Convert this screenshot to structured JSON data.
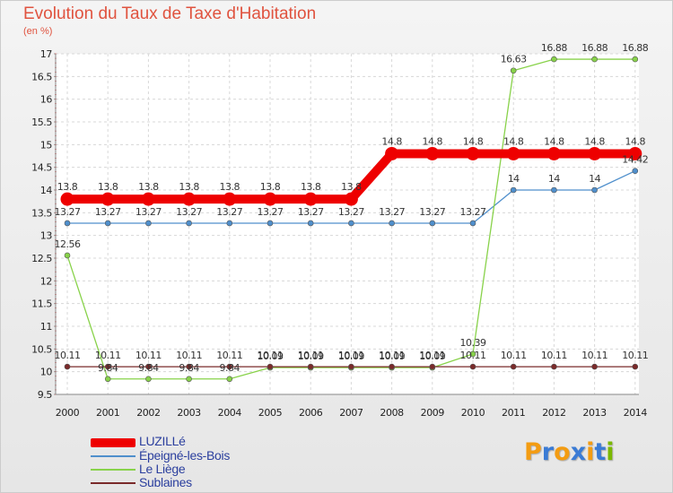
{
  "chart_data": {
    "type": "line",
    "title": "Evolution du Taux de Taxe d'Habitation",
    "ylabel": "(en %)",
    "xlabel": "",
    "ylim": [
      9.5,
      17
    ],
    "y_ticks": [
      "9.5",
      "10",
      "10.5",
      "11",
      "11.5",
      "12",
      "12.5",
      "13",
      "13.5",
      "14",
      "14.5",
      "15",
      "15.5",
      "16",
      "16.5",
      "17"
    ],
    "categories": [
      "2000",
      "2001",
      "2002",
      "2003",
      "2004",
      "2005",
      "2006",
      "2007",
      "2008",
      "2009",
      "2010",
      "2011",
      "2012",
      "2013",
      "2014"
    ],
    "series": [
      {
        "name": "LUZILLé",
        "color": "#ee0000",
        "values": [
          13.8,
          13.8,
          13.8,
          13.8,
          13.8,
          13.8,
          13.8,
          13.8,
          14.8,
          14.8,
          14.8,
          14.8,
          14.8,
          14.8,
          14.8
        ],
        "labels": [
          "13.8",
          "13.8",
          "13.8",
          "13.8",
          "13.8",
          "13.8",
          "13.8",
          "13.8",
          "14.8",
          "14.8",
          "14.8",
          "14.8",
          "14.8",
          "14.8",
          "14.8"
        ]
      },
      {
        "name": "Épeigné-les-Bois",
        "color": "#4f8fcc",
        "values": [
          13.27,
          13.27,
          13.27,
          13.27,
          13.27,
          13.27,
          13.27,
          13.27,
          13.27,
          13.27,
          13.27,
          14,
          14,
          14,
          14.42
        ],
        "labels": [
          "13.27",
          "13.27",
          "13.27",
          "13.27",
          "13.27",
          "13.27",
          "13.27",
          "13.27",
          "13.27",
          "13.27",
          "13.27",
          "14",
          "14",
          "14",
          "14.42"
        ]
      },
      {
        "name": "Le Liège",
        "color": "#88d24a",
        "values": [
          12.56,
          9.84,
          9.84,
          9.84,
          9.84,
          10.09,
          10.09,
          10.09,
          10.09,
          10.09,
          10.39,
          16.63,
          16.88,
          16.88,
          16.88
        ],
        "labels": [
          "12.56",
          "9.84",
          "9.84",
          "9.84",
          "9.84",
          "10.09",
          "10.09",
          "10.09",
          "10.09",
          "10.09",
          "10.39",
          "16.63",
          "16.88",
          "16.88",
          "16.88"
        ]
      },
      {
        "name": "Sublaines",
        "color": "#7a2a2a",
        "values": [
          10.11,
          10.11,
          10.11,
          10.11,
          10.11,
          10.11,
          10.11,
          10.11,
          10.11,
          10.11,
          10.11,
          10.11,
          10.11,
          10.11,
          10.11
        ],
        "labels": [
          "10.11",
          "10.11",
          "10.11",
          "10.11",
          "10.11",
          "10.11",
          "10.11",
          "10.11",
          "10.11",
          "10.11",
          "10.11",
          "10.11",
          "10.11",
          "10.11",
          "10.11"
        ]
      }
    ]
  },
  "logo": {
    "letters": [
      "P",
      "r",
      "o",
      "x",
      "i",
      "t",
      "i"
    ],
    "colors": [
      "#f39c12",
      "#3a7bd5",
      "#f39c12",
      "#3a7bd5",
      "#f39c12",
      "#3a7bd5",
      "#7ab800"
    ]
  }
}
